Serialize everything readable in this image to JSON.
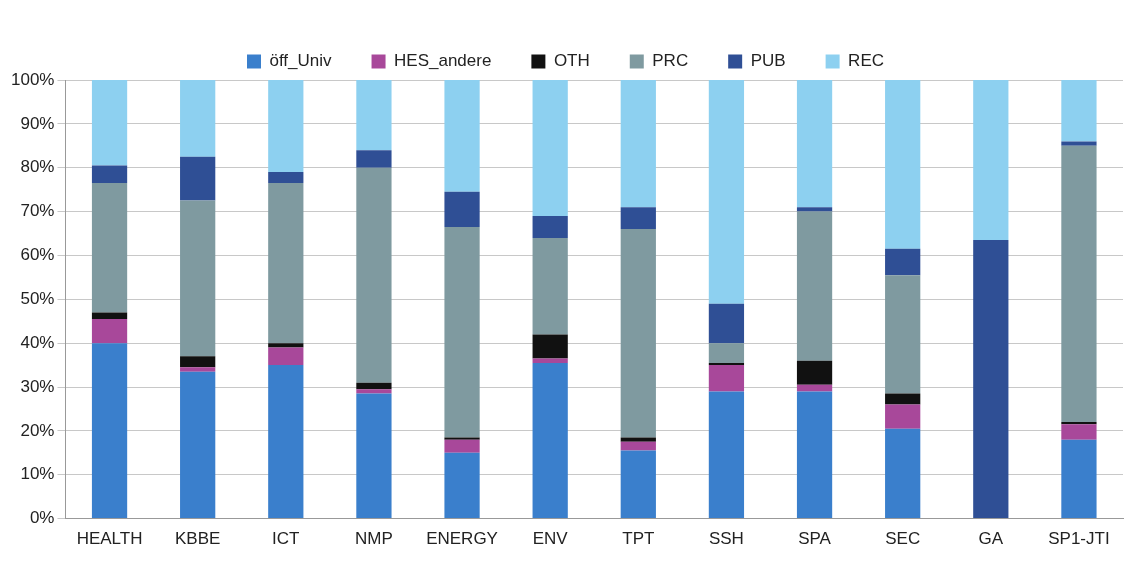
{
  "chart_data": {
    "type": "bar",
    "stacked": true,
    "categories": [
      "HEALTH",
      "KBBE",
      "ICT",
      "NMP",
      "ENERGY",
      "ENV",
      "TPT",
      "SSH",
      "SPA",
      "SEC",
      "GA",
      "SP1-JTI"
    ],
    "series": [
      {
        "name": "öff_Univ",
        "color": "#3a7fcc",
        "values": [
          40,
          33.5,
          35,
          28.5,
          15,
          35.5,
          15.5,
          29,
          29,
          20.5,
          0,
          18
        ]
      },
      {
        "name": "HES_andere",
        "color": "#a8489a",
        "values": [
          5.5,
          1,
          4,
          1,
          3,
          1,
          2,
          6,
          1.5,
          5.5,
          0,
          3.5
        ]
      },
      {
        "name": "OTH",
        "color": "#111111",
        "values": [
          1.5,
          2.5,
          1,
          1.5,
          0.5,
          5.5,
          1,
          0.5,
          5.5,
          2.5,
          0,
          0.5
        ]
      },
      {
        "name": "PRC",
        "color": "#7f9aa0",
        "values": [
          29.5,
          35.5,
          36.5,
          49,
          48,
          22,
          47.5,
          4.5,
          34,
          27,
          0,
          63
        ]
      },
      {
        "name": "PUB",
        "color": "#2f4f95",
        "values": [
          4,
          10,
          2.5,
          4,
          8,
          5,
          5,
          9,
          1,
          6,
          63.5,
          1
        ]
      },
      {
        "name": "REC",
        "color": "#8dd0f0",
        "values": [
          19.5,
          17.5,
          21,
          16,
          25.5,
          31,
          29,
          51,
          29,
          38.5,
          36.5,
          14
        ]
      }
    ],
    "ylim": [
      0,
      100
    ],
    "yticks": [
      {
        "value": 0,
        "label": "0%"
      },
      {
        "value": 10,
        "label": "10%"
      },
      {
        "value": 20,
        "label": "20%"
      },
      {
        "value": 30,
        "label": "30%"
      },
      {
        "value": 40,
        "label": "40%"
      },
      {
        "value": 50,
        "label": "50%"
      },
      {
        "value": 60,
        "label": "60%"
      },
      {
        "value": 70,
        "label": "70%"
      },
      {
        "value": 80,
        "label": "80%"
      },
      {
        "value": 90,
        "label": "90%"
      },
      {
        "value": 100,
        "label": "100%"
      }
    ],
    "grid": "y",
    "legend": "top"
  }
}
